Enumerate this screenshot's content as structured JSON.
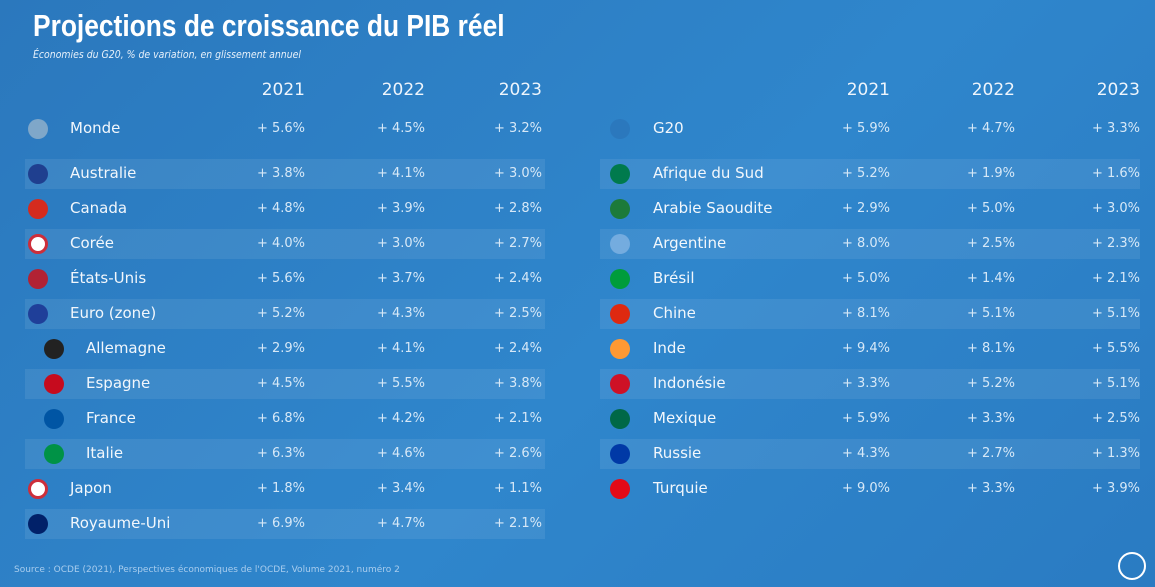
{
  "title": "Projections de croissance du PIB réel",
  "subtitle": "Économies du G20, % de variation, en glissement annuel",
  "left_table": {
    "columns": [
      "2021",
      "2022",
      "2023"
    ],
    "rows": [
      {
        "name": "Monde",
        "values": [
          "+ 5.6%",
          "+ 4.5%",
          "+ 3.2%"
        ]
      },
      {
        "name": "Australie",
        "values": [
          "+ 3.8%",
          "+ 4.1%",
          "+ 3.0%"
        ]
      },
      {
        "name": "Canada",
        "values": [
          "+ 4.8%",
          "+ 3.9%",
          "+ 2.8%"
        ]
      },
      {
        "name": "Corée",
        "values": [
          "+ 4.0%",
          "+ 3.0%",
          "+ 2.7%"
        ]
      },
      {
        "name": "États-Unis",
        "values": [
          "+ 5.6%",
          "+ 3.7%",
          "+ 2.4%"
        ]
      },
      {
        "name": "Euro (zone)",
        "values": [
          "+ 5.2%",
          "+ 4.3%",
          "+ 2.5%"
        ]
      },
      {
        "name": "Allemagne",
        "values": [
          "+ 2.9%",
          "+ 4.1%",
          "+ 2.4%"
        ]
      },
      {
        "name": "Espagne",
        "values": [
          "+ 4.5%",
          "+ 5.5%",
          "+ 3.8%"
        ]
      },
      {
        "name": "France",
        "values": [
          "+ 6.8%",
          "+ 4.2%",
          "+ 2.1%"
        ]
      },
      {
        "name": "Italie",
        "values": [
          "+ 6.3%",
          "+ 4.6%",
          "+ 2.6%"
        ]
      },
      {
        "name": "Japon",
        "values": [
          "+ 1.8%",
          "+ 3.4%",
          "+ 1.1%"
        ]
      },
      {
        "name": "Royaume-Uni",
        "values": [
          "+ 6.9%",
          "+ 4.7%",
          "+ 2.1%"
        ]
      }
    ]
  },
  "right_table": {
    "columns": [
      "2021",
      "2022",
      "2023"
    ],
    "rows": [
      {
        "name": "G20",
        "values": [
          "+ 5.9%",
          "+ 4.7%",
          "+ 3.3%"
        ]
      },
      {
        "name": "Afrique du Sud",
        "values": [
          "+ 5.2%",
          "+ 1.9%",
          "+ 1.6%"
        ]
      },
      {
        "name": "Arabie Saoudite",
        "values": [
          "+ 2.9%",
          "+ 5.0%",
          "+ 3.0%"
        ]
      },
      {
        "name": "Argentine",
        "values": [
          "+ 8.0%",
          "+ 2.5%",
          "+ 2.3%"
        ]
      },
      {
        "name": "Brésil",
        "values": [
          "+ 5.0%",
          "+ 1.4%",
          "+ 2.1%"
        ]
      },
      {
        "name": "Chine",
        "values": [
          "+ 8.1%",
          "+ 5.1%",
          "+ 5.1%"
        ]
      },
      {
        "name": "Inde",
        "values": [
          "+ 9.4%",
          "+ 8.1%",
          "+ 5.5%"
        ]
      },
      {
        "name": "Indonésie",
        "values": [
          "+ 3.3%",
          "+ 5.2%",
          "+ 5.1%"
        ]
      },
      {
        "name": "Mexique",
        "values": [
          "+ 5.9%",
          "+ 3.3%",
          "+ 2.5%"
        ]
      },
      {
        "name": "Russie",
        "values": [
          "+ 4.3%",
          "+ 2.7%",
          "+ 1.3%"
        ]
      },
      {
        "name": "Turquie",
        "values": [
          "+ 9.0%",
          "+ 3.3%",
          "+ 3.9%"
        ]
      }
    ]
  },
  "source": "Source : OCDE (2021), Perspectives économiques de l'OCDE, Volume 2021, numéro 2"
}
